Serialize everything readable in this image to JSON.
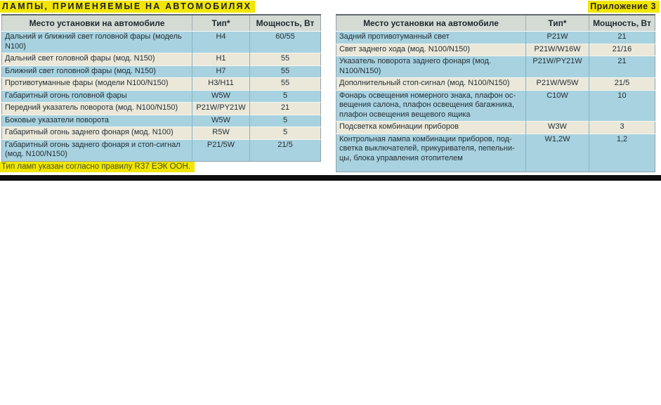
{
  "page": {
    "title": "ЛАМПЫ, ПРИМЕНЯЕМЫЕ НА АВТОМОБИЛЯХ",
    "appendix": "Приложение 3",
    "footnote": "Тип ламп указан согласно правилу R37 ЕЭК ООН."
  },
  "columns": {
    "place": "Место установки на автомобиле",
    "type": "Тип*",
    "power": "Мощность, Вт"
  },
  "left_table": {
    "rows": [
      {
        "place": "Дальний и ближний свет головной фары (модель N100)",
        "type": "H4",
        "power": "60/55"
      },
      {
        "place": "Дальний свет головной фары (мод. N150)",
        "type": "H1",
        "power": "55"
      },
      {
        "place": "Ближний свет головной фары (мод. N150)",
        "type": "H7",
        "power": "55"
      },
      {
        "place": "Противотуманные фары (модели N100/N150)",
        "type": "H3/H11",
        "power": "55"
      },
      {
        "place": "Габаритный огонь головной фары",
        "type": "W5W",
        "power": "5"
      },
      {
        "place": "Передний указатель поворота (мод. N100/N150)",
        "type": "P21W/PY21W",
        "power": "21"
      },
      {
        "place": "Боковые указатели поворота",
        "type": "W5W",
        "power": "5"
      },
      {
        "place": "Габаритный огонь заднего фонаря (мод. N100)",
        "type": "R5W",
        "power": "5"
      },
      {
        "place": "Габаритный огонь заднего фонаря и стоп-сигнал (мод. N100/N150)",
        "type": "P21/5W",
        "power": "21/5"
      }
    ]
  },
  "right_table": {
    "rows": [
      {
        "place": "Задний противотуманный свет",
        "type": "P21W",
        "power": "21"
      },
      {
        "place": "Свет заднего хода (мод. N100/N150)",
        "type": "P21W/W16W",
        "power": "21/16"
      },
      {
        "place": "Указатель поворота заднего фонаря (мод. N100/N150)",
        "type": "P21W/PY21W",
        "power": "21"
      },
      {
        "place": "Дополнительный стоп-сигнал (мод. N100/N150)",
        "type": "P21W/W5W",
        "power": "21/5"
      },
      {
        "place": "Фонарь освещения номерного знака, плафон ос- вещения салона, плафон освещения багажника, плафон освещения вещевого ящика",
        "type": "C10W",
        "power": "10"
      },
      {
        "place": "Подсветка комбинации приборов",
        "type": "W3W",
        "power": "3"
      },
      {
        "place": "Контрольная лампа комбинации приборов, под- светка выключателей, прикуривателя, пепельни- цы, блока управления отопителем",
        "type": "W1,2W",
        "power": "1,2"
      }
    ]
  },
  "colors": {
    "highlight_yellow": "#f2e600",
    "row_blue": "#a8d2e0",
    "row_cream": "#ebe8d9",
    "header_bg": "#d4dbd4",
    "divider_black": "#0d0d0d"
  }
}
